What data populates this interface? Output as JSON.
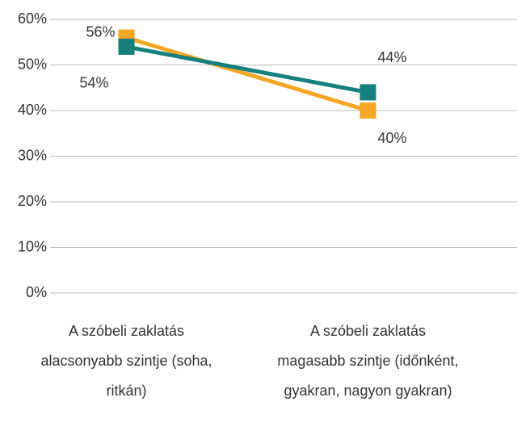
{
  "chart_data": {
    "type": "line",
    "categories": [
      "A szóbeli zaklatás alacsonyabb szintje (soha, ritkán)",
      "A szóbeli zaklatás magasabb szintje (időnként, gyakran, nagyon gyakran)"
    ],
    "series": [
      {
        "color": "#f5a623",
        "values": [
          56,
          40
        ],
        "value_labels": [
          "56%",
          "40%"
        ]
      },
      {
        "color": "#15807d",
        "values": [
          54,
          44
        ],
        "value_labels": [
          "54%",
          "44%"
        ]
      }
    ],
    "ylim": [
      0,
      60
    ],
    "yticks": [
      {
        "value": 0,
        "label": "0%"
      },
      {
        "value": 10,
        "label": "10%"
      },
      {
        "value": 20,
        "label": "20%"
      },
      {
        "value": 30,
        "label": "30%"
      },
      {
        "value": 40,
        "label": "40%"
      },
      {
        "value": 50,
        "label": "50%"
      },
      {
        "value": 60,
        "label": "60%"
      }
    ],
    "grid": true
  }
}
